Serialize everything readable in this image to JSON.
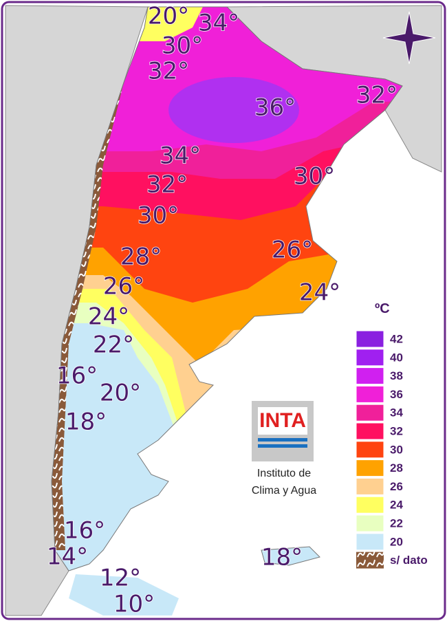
{
  "isotherm_labels": [
    "20°",
    "34°",
    "30°",
    "32°",
    "36°",
    "32°",
    "34°",
    "30°",
    "32°",
    "30°",
    "28°",
    "26°",
    "26°",
    "24°",
    "24°",
    "22°",
    "16°",
    "20°",
    "18°",
    "16°",
    "14°",
    "12°",
    "10°",
    "18°"
  ],
  "legend": {
    "unit": "ºC",
    "items": [
      {
        "label": "42",
        "color": "#8a20e0"
      },
      {
        "label": "40",
        "color": "#a020f0"
      },
      {
        "label": "38",
        "color": "#d020f0"
      },
      {
        "label": "36",
        "color": "#f020d8"
      },
      {
        "label": "34",
        "color": "#f0209a"
      },
      {
        "label": "32",
        "color": "#ff1060"
      },
      {
        "label": "30",
        "color": "#ff4410"
      },
      {
        "label": "28",
        "color": "#ffa200"
      },
      {
        "label": "26",
        "color": "#ffd090"
      },
      {
        "label": "24",
        "color": "#ffff60"
      },
      {
        "label": "22",
        "color": "#e8ffc0"
      },
      {
        "label": "20",
        "color": "#c8e8f8"
      }
    ],
    "no_data": "s/ dato"
  },
  "logo": {
    "text": "INTA",
    "caption": [
      "Instituto de",
      "Clima y Agua"
    ]
  }
}
